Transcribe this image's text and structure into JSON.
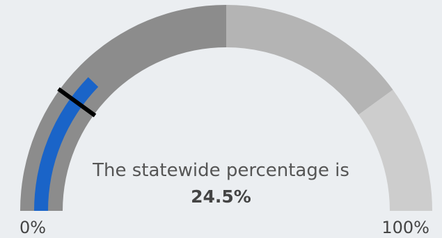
{
  "chart_data": {
    "type": "gauge",
    "range": [
      0,
      100
    ],
    "value": 24.5,
    "value_label": "24.5%",
    "marker": 20,
    "bands": [
      {
        "from": 0,
        "to": 50,
        "color": "#8C8C8C"
      },
      {
        "from": 50,
        "to": 80,
        "color": "#B4B4B4"
      },
      {
        "from": 80,
        "to": 100,
        "color": "#CDCDCD"
      }
    ],
    "bar_color": "#1A64C8",
    "marker_color": "#000000",
    "caption": "The statewide percentage is",
    "min_label": "0%",
    "max_label": "100%"
  }
}
